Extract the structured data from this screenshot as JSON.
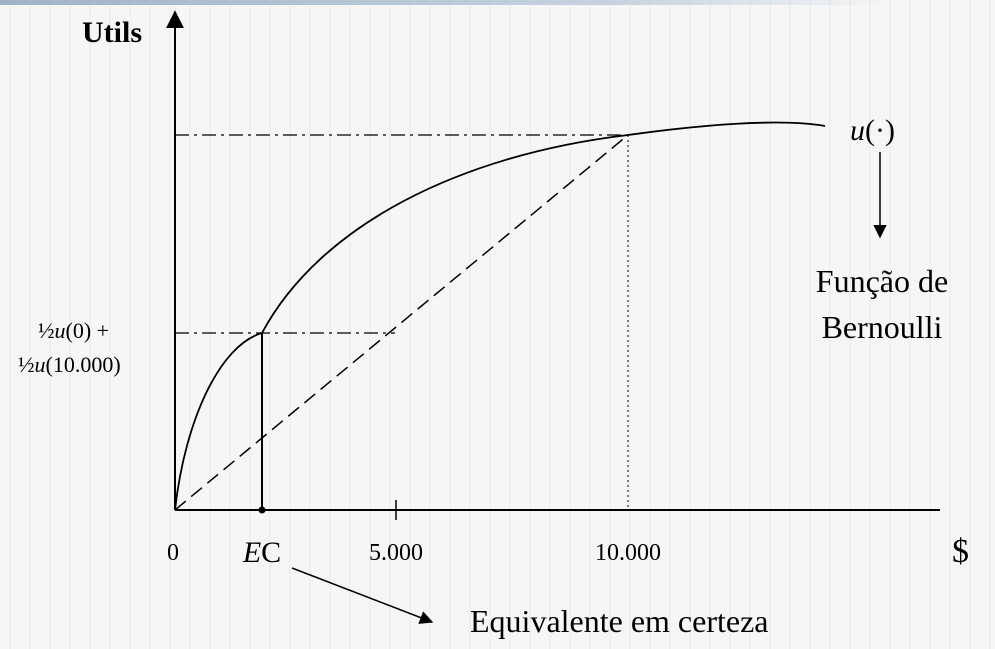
{
  "diagram": {
    "y_axis_label": "Utils",
    "x_axis_label": "$",
    "curve_label_u": "u",
    "curve_label_dot": "(·)",
    "function_label_line1": "Função de",
    "function_label_line2": "Bernoulli",
    "expected_utility_line1_prefix": "½",
    "expected_utility_line1_u": "u",
    "expected_utility_line1_suffix": "(0) +",
    "expected_utility_line2_prefix": "½",
    "expected_utility_line2_u": "u",
    "expected_utility_line2_suffix": "(10.000)",
    "tick_0": "0",
    "tick_ec_italic": "E",
    "tick_ec_rest": "C",
    "tick_5000": "5.000",
    "tick_10000": "10.000",
    "certainty_equivalent_label": "Equivalente em certeza"
  }
}
